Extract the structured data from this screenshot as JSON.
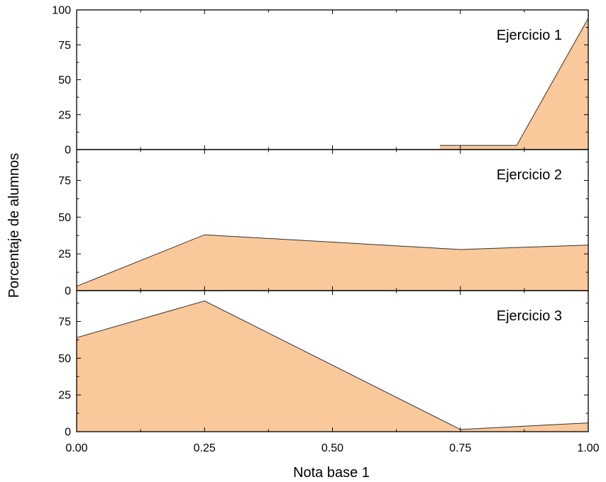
{
  "chart_data": {
    "type": "area",
    "xlabel": "Nota base 1",
    "ylabel": "Porcentaje de alumnos",
    "fill_color": "#f9c89b",
    "line_color": "#333333",
    "x_ticks": [
      "0.00",
      "0.25",
      "0.50",
      "0.75",
      "1.00"
    ],
    "xlim": [
      0,
      1
    ],
    "panels": [
      {
        "title": "Ejercicio 1",
        "ylim": [
          0,
          100
        ],
        "y_ticks": [
          0,
          25,
          50,
          75,
          100
        ],
        "x": [
          0.71,
          0.75,
          0.86,
          1.0
        ],
        "y": [
          3,
          3,
          3,
          94
        ]
      },
      {
        "title": "Ejercicio 2",
        "ylim": [
          0,
          96
        ],
        "y_ticks": [
          0,
          25,
          50,
          75
        ],
        "x": [
          0.0,
          0.25,
          0.75,
          1.0
        ],
        "y": [
          3,
          38,
          28,
          31
        ]
      },
      {
        "title": "Ejercicio 3",
        "ylim": [
          0,
          96
        ],
        "y_ticks": [
          0,
          25,
          50,
          75
        ],
        "x": [
          0.0,
          0.25,
          0.75,
          1.0
        ],
        "y": [
          64,
          89,
          1.5,
          6
        ]
      }
    ]
  }
}
